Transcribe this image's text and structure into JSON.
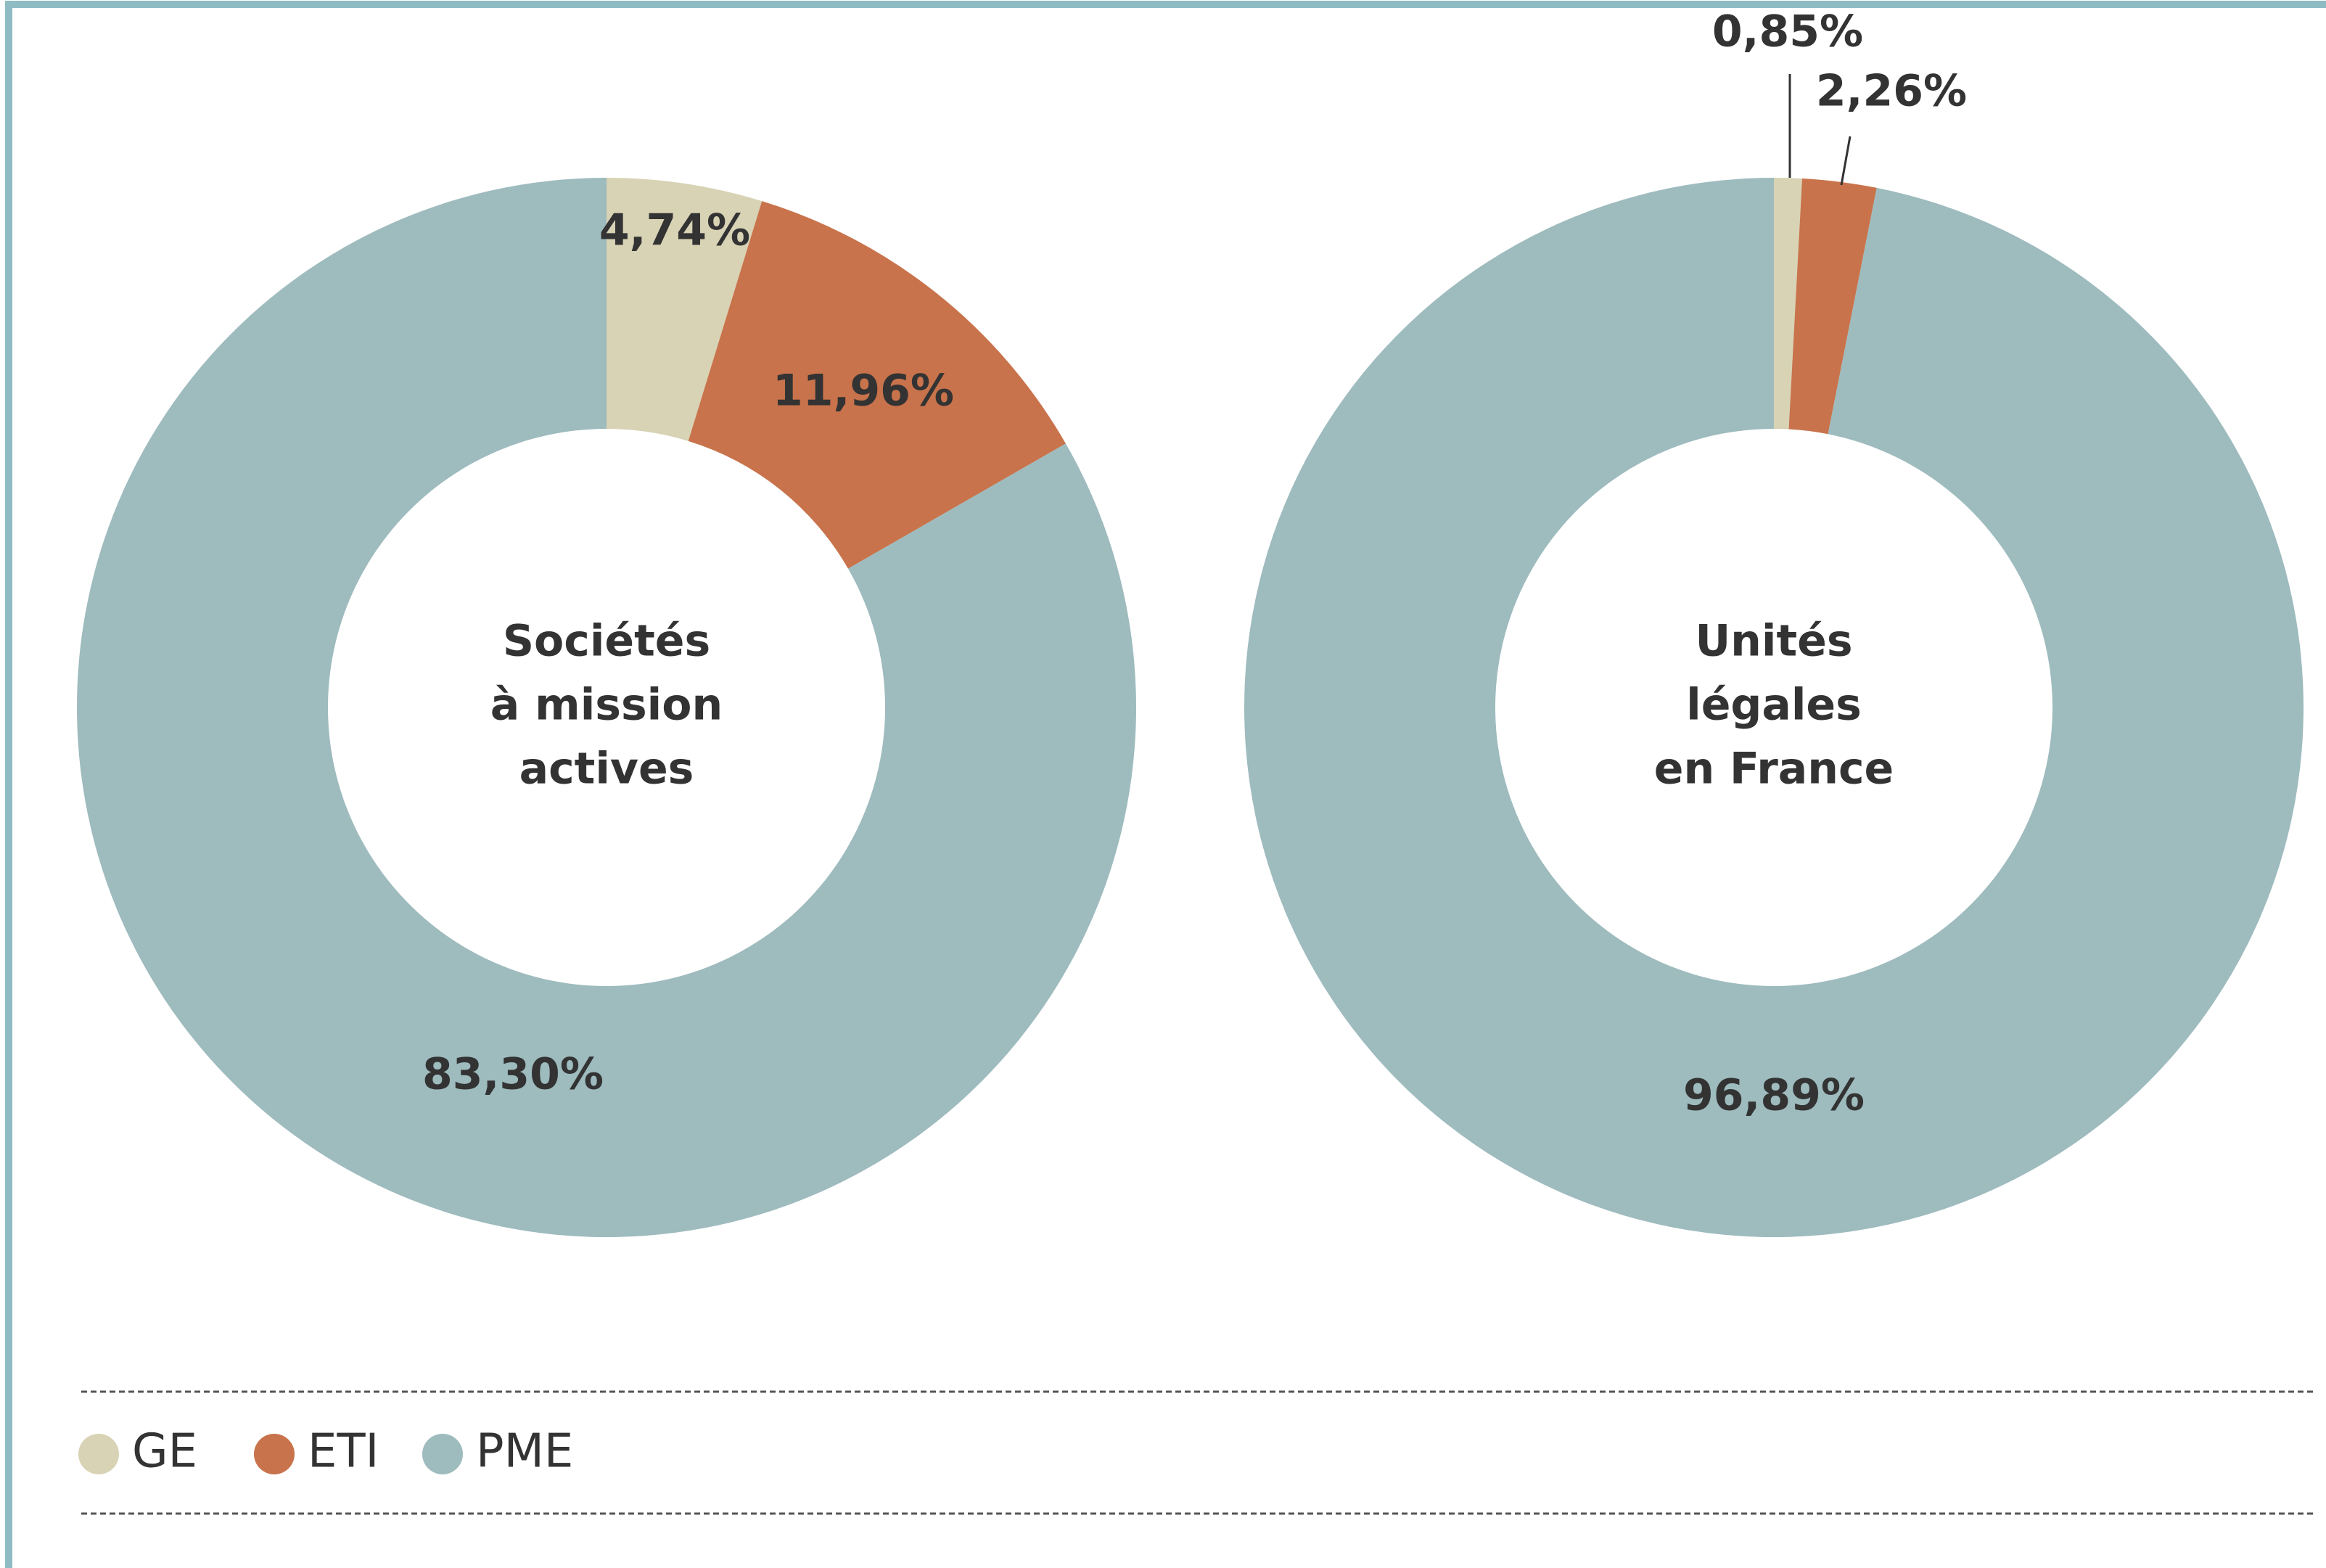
{
  "chart_data": [
    {
      "type": "pie",
      "center_label": [
        "Sociétés",
        "à mission",
        "actives"
      ],
      "categories": [
        "GE",
        "ETI",
        "PME"
      ],
      "colors": [
        "#d8d3b5",
        "#c8734b",
        "#9ebbbe"
      ],
      "values": [
        4.74,
        11.96,
        83.3
      ],
      "value_labels": [
        "4,74%",
        "11,96%",
        "83,30%"
      ]
    },
    {
      "type": "pie",
      "center_label": [
        "Unités",
        "légales",
        "en France"
      ],
      "categories": [
        "GE",
        "ETI",
        "PME"
      ],
      "colors": [
        "#d8d3b5",
        "#c8734b",
        "#9ebbbe"
      ],
      "values": [
        0.85,
        2.26,
        96.89
      ],
      "value_labels": [
        "0,85%",
        "2,26%",
        "96,89%"
      ]
    }
  ]
}
